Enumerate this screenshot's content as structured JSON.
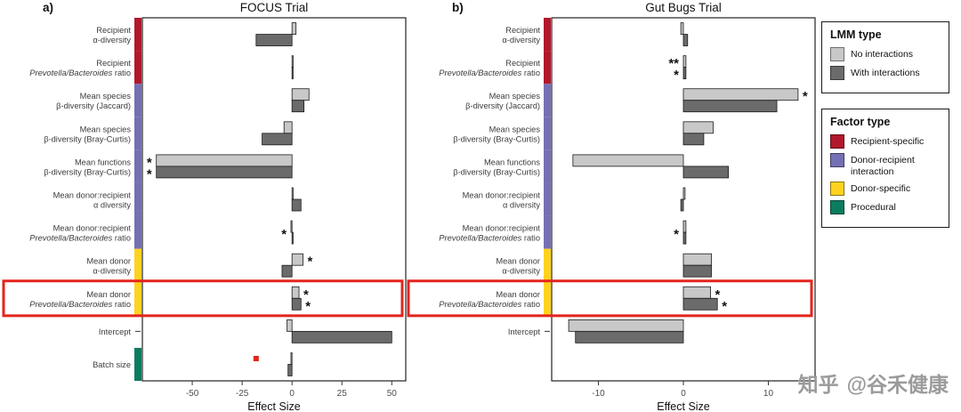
{
  "watermark": {
    "brand": "知乎",
    "handle": "@谷禾健康"
  },
  "styles": {
    "series_colors": [
      "#c8c8c8",
      "#6b6b6b"
    ],
    "bar_stroke": "#1a1a1a",
    "factor_colors": {
      "recipient": "#b2182b",
      "interaction": "#7570b3",
      "donor": "#ffd21f",
      "procedural": "#0c7c5f"
    },
    "highlight_color": "#e3251d",
    "point_color": "#e02519"
  },
  "legends": [
    {
      "title": "LMM type",
      "items": [
        {
          "label": "No interactions",
          "color": "#c8c8c8"
        },
        {
          "label": "With interactions",
          "color": "#6b6b6b"
        }
      ]
    },
    {
      "title": "Factor type",
      "items": [
        {
          "label": "Recipient-specific",
          "color": "#b2182b"
        },
        {
          "label": "Donor-recipient interaction",
          "color": "#7570b3"
        },
        {
          "label": "Donor-specific",
          "color": "#ffd21f"
        },
        {
          "label": "Procedural",
          "color": "#0c7c5f"
        }
      ]
    }
  ],
  "chart_data": [
    {
      "type": "bar",
      "orientation": "horizontal",
      "panel_label": "a)",
      "title": "FOCUS Trial",
      "xlabel": "Effect Size",
      "xlim": [
        -75,
        57
      ],
      "xticks": [
        -50,
        -25,
        0,
        25,
        50
      ],
      "categories": [
        {
          "factor": "recipient",
          "lines": [
            [
              {
                "t": "Recipient"
              }
            ],
            [
              {
                "t": "α-diversity"
              }
            ]
          ]
        },
        {
          "factor": "recipient",
          "lines": [
            [
              {
                "t": "Recipient"
              }
            ],
            [
              {
                "t": "Prevotella/Bacteroides",
                "i": true
              },
              {
                "t": " ratio"
              }
            ]
          ]
        },
        {
          "factor": "interaction",
          "lines": [
            [
              {
                "t": "Mean species"
              }
            ],
            [
              {
                "t": "β-diversity (Jaccard)"
              }
            ]
          ]
        },
        {
          "factor": "interaction",
          "lines": [
            [
              {
                "t": "Mean species"
              }
            ],
            [
              {
                "t": "β-diversity (Bray-Curtis)"
              }
            ]
          ]
        },
        {
          "factor": "interaction",
          "lines": [
            [
              {
                "t": "Mean functions"
              }
            ],
            [
              {
                "t": "β-diversity (Bray-Curtis)"
              }
            ]
          ]
        },
        {
          "factor": "interaction",
          "lines": [
            [
              {
                "t": "Mean donor:recipient"
              }
            ],
            [
              {
                "t": "α diversity"
              }
            ]
          ]
        },
        {
          "factor": "interaction",
          "lines": [
            [
              {
                "t": "Mean donor:recipient"
              }
            ],
            [
              {
                "t": "Prevotella/Bacteroides",
                "i": true
              },
              {
                "t": " ratio"
              }
            ]
          ]
        },
        {
          "factor": "donor",
          "lines": [
            [
              {
                "t": "Mean donor"
              }
            ],
            [
              {
                "t": "α-diversity"
              }
            ]
          ]
        },
        {
          "factor": "donor",
          "highlight": true,
          "lines": [
            [
              {
                "t": "Mean donor"
              }
            ],
            [
              {
                "t": "Prevotella/Bacteroides",
                "i": true
              },
              {
                "t": " ratio"
              }
            ]
          ]
        },
        {
          "factor": "none",
          "lines": [
            [
              {
                "t": "Intercept"
              }
            ]
          ]
        },
        {
          "factor": "procedural",
          "lines": [
            [
              {
                "t": "Batch size"
              }
            ]
          ]
        }
      ],
      "series": [
        {
          "name": "No interactions",
          "values": [
            2,
            0.4,
            8.5,
            -4,
            -68,
            0.3,
            -0.5,
            5.5,
            3.5,
            -2.5,
            -0.5
          ]
        },
        {
          "name": "With interactions",
          "values": [
            -18,
            0.4,
            6,
            -15,
            -68,
            4.5,
            0.5,
            -5,
            4.5,
            50,
            -2
          ]
        }
      ],
      "significance": [
        {
          "row": 4,
          "series": 0,
          "label": "*",
          "side": "left"
        },
        {
          "row": 4,
          "series": 1,
          "label": "*",
          "side": "left"
        },
        {
          "row": 6,
          "series": null,
          "label": "*",
          "side": "left"
        },
        {
          "row": 7,
          "series": 0,
          "label": "*",
          "side": "right"
        },
        {
          "row": 8,
          "series": 0,
          "label": "*",
          "side": "right"
        },
        {
          "row": 8,
          "series": 1,
          "label": "*",
          "side": "right"
        }
      ],
      "points": [
        {
          "row": 10,
          "series": 0,
          "x": -18
        }
      ]
    },
    {
      "type": "bar",
      "orientation": "horizontal",
      "panel_label": "b)",
      "title": "Gut Bugs Trial",
      "xlabel": "Effect Size",
      "xlim": [
        -15.5,
        15.5
      ],
      "xticks": [
        -10,
        0,
        10
      ],
      "categories": [
        {
          "factor": "recipient",
          "lines": [
            [
              {
                "t": "Recipient"
              }
            ],
            [
              {
                "t": "α-diversity"
              }
            ]
          ]
        },
        {
          "factor": "recipient",
          "lines": [
            [
              {
                "t": "Recipient"
              }
            ],
            [
              {
                "t": "Prevotella/Bacteroides",
                "i": true
              },
              {
                "t": " ratio"
              }
            ]
          ]
        },
        {
          "factor": "interaction",
          "lines": [
            [
              {
                "t": "Mean species"
              }
            ],
            [
              {
                "t": "β-diversity (Jaccard)"
              }
            ]
          ]
        },
        {
          "factor": "interaction",
          "lines": [
            [
              {
                "t": "Mean species"
              }
            ],
            [
              {
                "t": "β-diversity (Bray-Curtis)"
              }
            ]
          ]
        },
        {
          "factor": "interaction",
          "lines": [
            [
              {
                "t": "Mean functions"
              }
            ],
            [
              {
                "t": "β-diversity (Bray-Curtis)"
              }
            ]
          ]
        },
        {
          "factor": "interaction",
          "lines": [
            [
              {
                "t": "Mean donor:recipient"
              }
            ],
            [
              {
                "t": "α diversity"
              }
            ]
          ]
        },
        {
          "factor": "interaction",
          "lines": [
            [
              {
                "t": "Mean donor:recipient"
              }
            ],
            [
              {
                "t": "Prevotella/Bacteroides",
                "i": true
              },
              {
                "t": " ratio"
              }
            ]
          ]
        },
        {
          "factor": "donor",
          "lines": [
            [
              {
                "t": "Mean donor"
              }
            ],
            [
              {
                "t": "α-diversity"
              }
            ]
          ]
        },
        {
          "factor": "donor",
          "highlight": true,
          "lines": [
            [
              {
                "t": "Mean donor"
              }
            ],
            [
              {
                "t": "Prevotella/Bacteroides",
                "i": true
              },
              {
                "t": " ratio"
              }
            ]
          ]
        },
        {
          "factor": "none",
          "lines": [
            [
              {
                "t": "Intercept"
              }
            ]
          ]
        }
      ],
      "series": [
        {
          "name": "No interactions",
          "values": [
            -0.3,
            0.3,
            13.5,
            3.5,
            -13,
            0.2,
            0.3,
            3.3,
            3.2,
            -13.5
          ]
        },
        {
          "name": "With interactions",
          "values": [
            0.5,
            0.3,
            11,
            2.4,
            5.3,
            -0.3,
            0.3,
            3.3,
            4,
            -12.7
          ]
        }
      ],
      "significance": [
        {
          "row": 1,
          "series": 0,
          "label": "**",
          "side": "left"
        },
        {
          "row": 1,
          "series": 1,
          "label": "*",
          "side": "left"
        },
        {
          "row": 2,
          "series": 0,
          "label": "*",
          "side": "right"
        },
        {
          "row": 6,
          "series": null,
          "label": "*",
          "side": "left"
        },
        {
          "row": 8,
          "series": 0,
          "label": "*",
          "side": "right"
        },
        {
          "row": 8,
          "series": 1,
          "label": "*",
          "side": "right"
        }
      ],
      "points": []
    }
  ]
}
